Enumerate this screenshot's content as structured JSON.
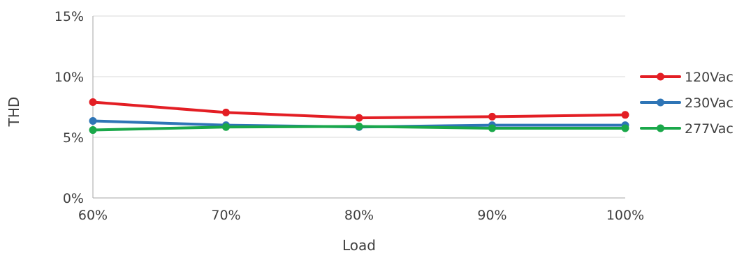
{
  "chart_data": {
    "type": "line",
    "title": "",
    "xlabel": "Load",
    "ylabel": "THD",
    "categories": [
      "60%",
      "70%",
      "80%",
      "90%",
      "100%"
    ],
    "ylim": [
      0,
      15
    ],
    "yticks": [
      {
        "value": 0,
        "label": "0%"
      },
      {
        "value": 5,
        "label": "5%"
      },
      {
        "value": 10,
        "label": "10%"
      },
      {
        "value": 15,
        "label": "15%"
      }
    ],
    "grid": true,
    "legend_position": "right",
    "series": [
      {
        "name": "120Vac",
        "color": "#E31E24",
        "values": [
          7.9,
          7.05,
          6.6,
          6.7,
          6.85
        ]
      },
      {
        "name": "230Vac",
        "color": "#2E75B6",
        "values": [
          6.35,
          6.0,
          5.85,
          6.0,
          6.0
        ]
      },
      {
        "name": "277Vac",
        "color": "#1AA84A",
        "values": [
          5.6,
          5.85,
          5.9,
          5.75,
          5.75
        ]
      }
    ]
  }
}
